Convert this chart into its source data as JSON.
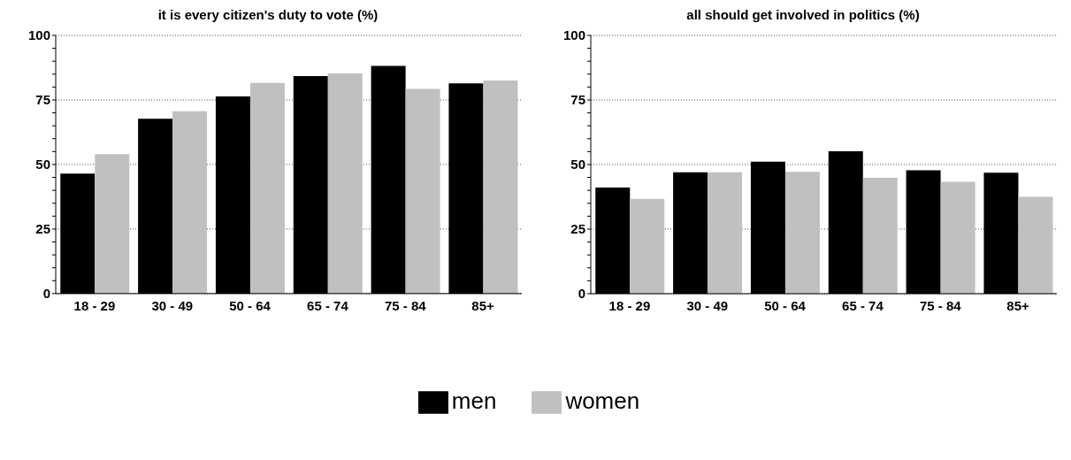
{
  "chart_data": [
    {
      "type": "bar",
      "title": "it is every citizen's duty to vote (%)",
      "categories": [
        "18 - 29",
        "30 - 49",
        "50 - 64",
        "65 - 74",
        "75 - 84",
        "85+"
      ],
      "series": [
        {
          "name": "men",
          "color": "#000000",
          "values": [
            46.5,
            67.7,
            76.4,
            84.2,
            88.2,
            81.4
          ]
        },
        {
          "name": "women",
          "color": "#c0c0c0",
          "values": [
            54,
            70.6,
            81.6,
            85.3,
            79.3,
            82.5
          ]
        }
      ],
      "ylim": [
        0,
        100
      ],
      "yticks": [
        0,
        {
          "value": 5,
          "label": null
        },
        {
          "value": 10,
          "label": null
        },
        {
          "value": 15,
          "label": null
        },
        {
          "value": 20,
          "label": null
        },
        25,
        {
          "value": 30,
          "label": null
        },
        {
          "value": 35,
          "label": null
        },
        {
          "value": 40,
          "label": null
        },
        {
          "value": 45,
          "label": null
        },
        50,
        {
          "value": 55,
          "label": null
        },
        {
          "value": 60,
          "label": null
        },
        {
          "value": 65,
          "label": null
        },
        {
          "value": 70,
          "label": null
        },
        75,
        {
          "value": 80,
          "label": null
        },
        {
          "value": 85,
          "label": null
        },
        {
          "value": 90,
          "label": null
        },
        {
          "value": 95,
          "label": null
        },
        100
      ],
      "grid": "y",
      "legend": "bottom"
    },
    {
      "type": "bar",
      "title": "all should get involved in politics (%)",
      "categories": [
        "18 - 29",
        "30 - 49",
        "50 - 64",
        "65 - 74",
        "75 - 84",
        "85+"
      ],
      "series": [
        {
          "color": "#000000",
          "values": [
            41.1,
            47,
            51.1,
            55.1,
            47.8,
            46.8
          ]
        },
        {
          "color": "#c0c0c0",
          "values": [
            36.7,
            47,
            47.2,
            44.9,
            43.3,
            37.5
          ]
        }
      ],
      "ylim": [
        0,
        100
      ],
      "yticks": [
        0,
        {
          "value": 5,
          "label": null
        },
        {
          "value": 10,
          "label": null
        },
        {
          "value": 15,
          "label": null
        },
        {
          "value": 20,
          "label": null
        },
        25,
        {
          "value": 30,
          "label": null
        },
        {
          "value": 35,
          "label": null
        },
        {
          "value": 40,
          "label": null
        },
        {
          "value": 45,
          "label": null
        },
        50,
        {
          "value": 55,
          "label": null
        },
        {
          "value": 60,
          "label": null
        },
        {
          "value": 65,
          "label": null
        },
        {
          "value": 70,
          "label": null
        },
        75,
        {
          "value": 80,
          "label": null
        },
        {
          "value": 85,
          "label": null
        },
        {
          "value": 90,
          "label": null
        },
        {
          "value": 95,
          "label": null
        },
        100
      ],
      "grid": "y"
    }
  ]
}
